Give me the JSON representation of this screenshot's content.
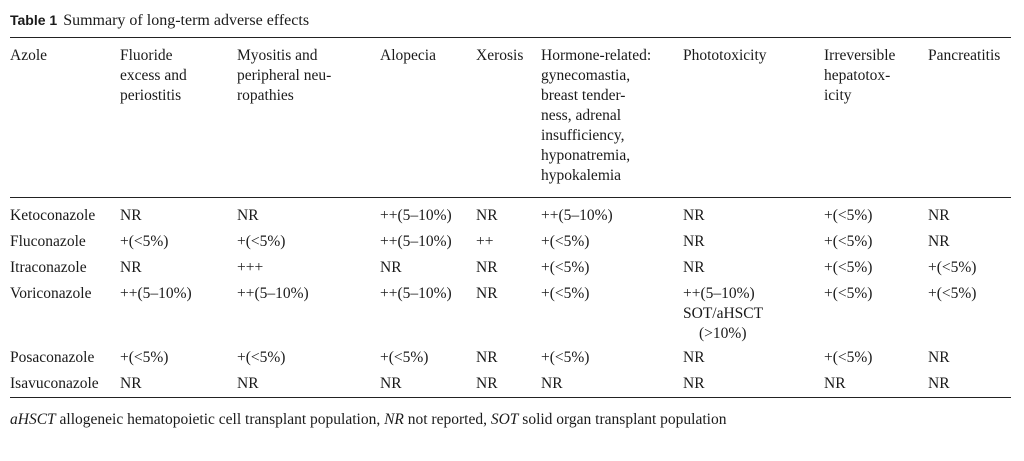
{
  "table": {
    "label": "Table 1",
    "title": "Summary of long-term adverse effects",
    "headers": [
      [
        "Azole"
      ],
      [
        "Fluoride",
        "excess and",
        "periostitis"
      ],
      [
        "Myositis and",
        "peripheral neu-",
        "ropathies"
      ],
      [
        "Alopecia"
      ],
      [
        "Xerosis"
      ],
      [
        "Hormone-related:",
        "gynecomastia,",
        "breast tender-",
        "ness, adrenal",
        "insufficiency,",
        "hyponatremia,",
        "hypokalemia"
      ],
      [
        "Phototoxicity"
      ],
      [
        "Irreversible",
        "hepatotox-",
        "icity"
      ],
      [
        "Pancreatitis"
      ]
    ],
    "rows": [
      [
        [
          "Ketoconazole"
        ],
        [
          "NR"
        ],
        [
          "NR"
        ],
        [
          "++(5–10%)"
        ],
        [
          "NR"
        ],
        [
          "++(5–10%)"
        ],
        [
          "NR"
        ],
        [
          "+(<5%)"
        ],
        [
          "NR"
        ]
      ],
      [
        [
          "Fluconazole"
        ],
        [
          "+(<5%)"
        ],
        [
          "+(<5%)"
        ],
        [
          "++(5–10%)"
        ],
        [
          "++"
        ],
        [
          "+(<5%)"
        ],
        [
          "NR"
        ],
        [
          "+(<5%)"
        ],
        [
          "NR"
        ]
      ],
      [
        [
          "Itraconazole"
        ],
        [
          "NR"
        ],
        [
          "+++"
        ],
        [
          "NR"
        ],
        [
          "NR"
        ],
        [
          "+(<5%)"
        ],
        [
          "NR"
        ],
        [
          "+(<5%)"
        ],
        [
          "+(<5%)"
        ]
      ],
      [
        [
          "Voriconazole"
        ],
        [
          "++(5–10%)"
        ],
        [
          "++(5–10%)"
        ],
        [
          "++(5–10%)"
        ],
        [
          "NR"
        ],
        [
          "+(<5%)"
        ],
        [
          "++(5–10%)",
          "SOT/aHSCT",
          "(>10%)"
        ],
        [
          "+(<5%)"
        ],
        [
          "+(<5%)"
        ]
      ],
      [
        [
          "Posaconazole"
        ],
        [
          "+(<5%)"
        ],
        [
          "+(<5%)"
        ],
        [
          "+(<5%)"
        ],
        [
          "NR"
        ],
        [
          "+(<5%)"
        ],
        [
          "NR"
        ],
        [
          "+(<5%)"
        ],
        [
          "NR"
        ]
      ],
      [
        [
          "Isavuconazole"
        ],
        [
          "NR"
        ],
        [
          "NR"
        ],
        [
          "NR"
        ],
        [
          "NR"
        ],
        [
          "NR"
        ],
        [
          "NR"
        ],
        [
          "NR"
        ],
        [
          "NR"
        ]
      ]
    ],
    "footnote": [
      {
        "text": "aHSCT",
        "italic": true
      },
      {
        "text": " allogeneic hematopoietic cell transplant population, ",
        "italic": false
      },
      {
        "text": "NR",
        "italic": true
      },
      {
        "text": " not reported, ",
        "italic": false
      },
      {
        "text": "SOT",
        "italic": true
      },
      {
        "text": " solid organ transplant population",
        "italic": false
      }
    ]
  }
}
